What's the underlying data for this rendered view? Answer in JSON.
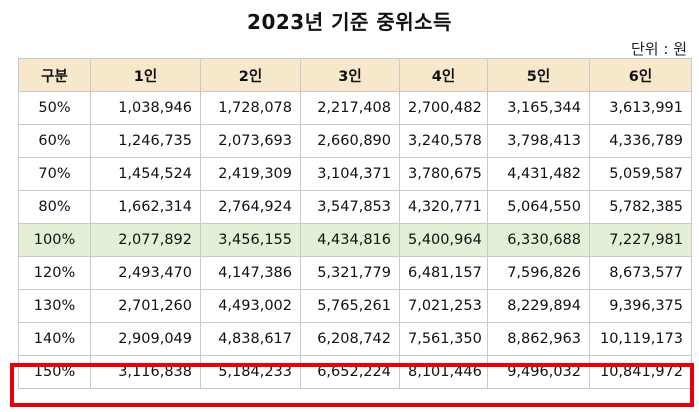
{
  "title": "2023년 기준 중위소득",
  "unit": "단위 : 원",
  "table": {
    "headers": [
      "구분",
      "1인",
      "2인",
      "3인",
      "4인",
      "5인",
      "6인"
    ],
    "rows": [
      [
        "50%",
        "1,038,946",
        "1,728,078",
        "2,217,408",
        "2,700,482",
        "3,165,344",
        "3,613,991"
      ],
      [
        "60%",
        "1,246,735",
        "2,073,693",
        "2,660,890",
        "3,240,578",
        "3,798,413",
        "4,336,789"
      ],
      [
        "70%",
        "1,454,524",
        "2,419,309",
        "3,104,371",
        "3,780,675",
        "4,431,482",
        "5,059,587"
      ],
      [
        "80%",
        "1,662,314",
        "2,764,924",
        "3,547,853",
        "4,320,771",
        "5,064,550",
        "5,782,385"
      ],
      [
        "100%",
        "2,077,892",
        "3,456,155",
        "4,434,816",
        "5,400,964",
        "6,330,688",
        "7,227,981"
      ],
      [
        "120%",
        "2,493,470",
        "4,147,386",
        "5,321,779",
        "6,481,157",
        "7,596,826",
        "8,673,577"
      ],
      [
        "130%",
        "2,701,260",
        "4,493,002",
        "5,765,261",
        "7,021,253",
        "8,229,894",
        "9,396,375"
      ],
      [
        "140%",
        "2,909,049",
        "4,838,617",
        "6,208,742",
        "7,561,350",
        "8,862,963",
        "10,119,173"
      ],
      [
        "150%",
        "3,116,838",
        "5,184,233",
        "6,652,224",
        "8,101,446",
        "9,496,032",
        "10,841,972"
      ]
    ]
  },
  "colors": {
    "header_bg": "#f7e8cc",
    "highlight_row_bg": "#e3efd7",
    "emphasis_border": "#e8000d",
    "grid_line": "#c9c9c9"
  }
}
